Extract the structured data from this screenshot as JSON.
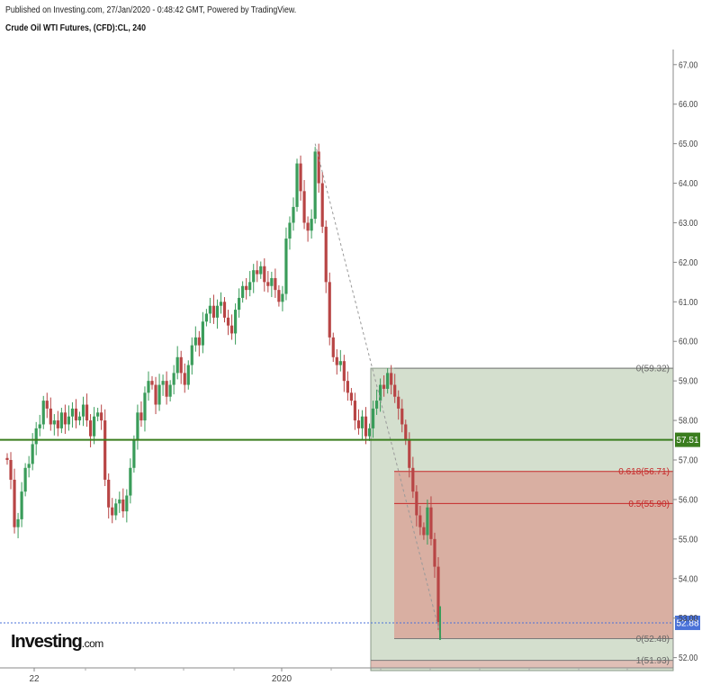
{
  "header": {
    "published": "Published on Investing.com, 27/Jan/2020 - 0:48:42 GMT, Powered by TradingView.",
    "symbol": "Crude Oil WTI Futures, (CFD):CL, 240"
  },
  "logo": {
    "main": "Investing",
    "suffix": ".com"
  },
  "colors": {
    "up": "#3a9c5a",
    "down": "#b84545",
    "support": "#3a7d1e",
    "fib_red": "#c62828",
    "current_price": "#4a72d8"
  },
  "chart_data": {
    "type": "candlestick",
    "timeframe": "240",
    "ylim": [
      51.9,
      67.2
    ],
    "y_ticks": [
      "67.00",
      "66.00",
      "65.00",
      "64.00",
      "63.00",
      "62.00",
      "61.00",
      "60.00",
      "59.00",
      "58.00",
      "57.00",
      "56.00",
      "55.00",
      "54.00",
      "53.00",
      "52.00"
    ],
    "x_ticks": [
      "22",
      "2020"
    ],
    "support_line": {
      "value": 57.51,
      "label": "57.51"
    },
    "current_price": {
      "value": 52.88,
      "label": "52.88"
    },
    "fib_levels": [
      {
        "ratio": "0",
        "value": 59.32,
        "label": "0(59.32)"
      },
      {
        "ratio": "0.618",
        "value": 56.71,
        "label": "0.618(56.71)"
      },
      {
        "ratio": "0.5",
        "value": 55.9,
        "label": "0.5(55.90)"
      },
      {
        "ratio": "0",
        "value": 52.48,
        "label": "0(52.48)"
      },
      {
        "ratio": "1",
        "value": 51.93,
        "label": "1(51.93)"
      }
    ],
    "series": [
      {
        "values": [
          57.0,
          56.5,
          55.3,
          55.5,
          56.2,
          56.8,
          56.9,
          57.4,
          57.8,
          57.9,
          58.5,
          58.3,
          57.9,
          58.0,
          57.8,
          58.2,
          57.9,
          58.1,
          58.3,
          58.0,
          58.1,
          58.4,
          58.0,
          57.6,
          58.1,
          58.2,
          58.0,
          56.5,
          55.8,
          55.6,
          55.9,
          56.0,
          55.7,
          56.1,
          56.8,
          57.5,
          58.2,
          58.0,
          58.7,
          59.0,
          58.9,
          58.4,
          58.9,
          59.0,
          58.6,
          58.9,
          59.2,
          59.6,
          59.2,
          58.9,
          59.4,
          59.9,
          60.1,
          59.9,
          60.5,
          60.7,
          60.9,
          60.6,
          60.9,
          61.0,
          60.6,
          60.4,
          60.2,
          60.8,
          61.1,
          61.4,
          61.3,
          61.5,
          61.8,
          61.7,
          61.9,
          61.5,
          61.4,
          61.6,
          61.3,
          61.0,
          61.2,
          62.6,
          63.0,
          63.4,
          64.5,
          63.8,
          63.0,
          62.8,
          63.1,
          64.8,
          64.0,
          62.9,
          61.5,
          60.1,
          59.6,
          59.4,
          59.5,
          59.0,
          58.7,
          58.5,
          58.0,
          57.8,
          58.1,
          57.6,
          57.8,
          58.3,
          58.5,
          58.9,
          58.8,
          59.2,
          58.9,
          58.6,
          58.3,
          57.9,
          57.5,
          56.8,
          56.2,
          55.6,
          55.3,
          55.1,
          55.8,
          55.0,
          54.3,
          52.9
        ]
      }
    ]
  }
}
